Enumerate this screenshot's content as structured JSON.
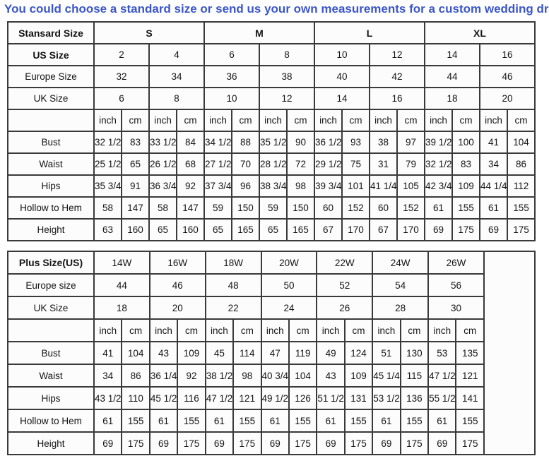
{
  "page": {
    "title": "You could choose a standard size or send us your own measurements for a custom wedding dress",
    "colors": {
      "title_blue": "#3b56c8",
      "table_border": "#3a3a3a",
      "cell_background": "#fcfcfc"
    }
  },
  "standard_table": {
    "corner_label": "Stansard Size",
    "size_groups": [
      {
        "label": "S",
        "span": 4
      },
      {
        "label": "M",
        "span": 4
      },
      {
        "label": "L",
        "span": 4
      },
      {
        "label": "XL",
        "span": 4
      }
    ],
    "size_rows": [
      {
        "label": "US Size",
        "bold": true,
        "values": [
          "2",
          "4",
          "6",
          "8",
          "10",
          "12",
          "14",
          "16"
        ]
      },
      {
        "label": "Europe Size",
        "bold": false,
        "values": [
          "32",
          "34",
          "36",
          "38",
          "40",
          "42",
          "44",
          "46"
        ]
      },
      {
        "label": "UK Size",
        "bold": false,
        "values": [
          "6",
          "8",
          "10",
          "12",
          "14",
          "16",
          "18",
          "20"
        ]
      }
    ],
    "unit_row": [
      "inch",
      "cm",
      "inch",
      "cm",
      "inch",
      "cm",
      "inch",
      "cm",
      "inch",
      "cm",
      "inch",
      "cm",
      "inch",
      "cm",
      "inch",
      "cm"
    ],
    "measure_rows": [
      {
        "label": "Bust",
        "values": [
          "32 1/2",
          "83",
          "33 1/2",
          "84",
          "34 1/2",
          "88",
          "35 1/2",
          "90",
          "36 1/2",
          "93",
          "38",
          "97",
          "39 1/2",
          "100",
          "41",
          "104"
        ]
      },
      {
        "label": "Waist",
        "values": [
          "25 1/2",
          "65",
          "26 1/2",
          "68",
          "27 1/2",
          "70",
          "28 1/2",
          "72",
          "29 1/2",
          "75",
          "31",
          "79",
          "32 1/2",
          "83",
          "34",
          "86"
        ]
      },
      {
        "label": "Hips",
        "values": [
          "35 3/4",
          "91",
          "36 3/4",
          "92",
          "37 3/4",
          "96",
          "38 3/4",
          "98",
          "39 3/4",
          "101",
          "41 1/4",
          "105",
          "42 3/4",
          "109",
          "44 1/4",
          "112"
        ]
      },
      {
        "label": "Hollow to Hem",
        "values": [
          "58",
          "147",
          "58",
          "147",
          "59",
          "150",
          "59",
          "150",
          "60",
          "152",
          "60",
          "152",
          "61",
          "155",
          "61",
          "155"
        ]
      },
      {
        "label": "Height",
        "values": [
          "63",
          "160",
          "65",
          "160",
          "65",
          "165",
          "65",
          "165",
          "67",
          "170",
          "67",
          "170",
          "69",
          "175",
          "69",
          "175"
        ]
      }
    ]
  },
  "plus_table": {
    "corner_label": "Plus Size(US)",
    "sizes": [
      "14W",
      "16W",
      "18W",
      "20W",
      "22W",
      "24W",
      "26W"
    ],
    "size_rows": [
      {
        "label": "Europe size",
        "bold": false,
        "values": [
          "44",
          "46",
          "48",
          "50",
          "52",
          "54",
          "56"
        ]
      },
      {
        "label": "UK Size",
        "bold": false,
        "values": [
          "18",
          "20",
          "22",
          "24",
          "26",
          "28",
          "30"
        ]
      }
    ],
    "unit_row": [
      "inch",
      "cm",
      "inch",
      "cm",
      "inch",
      "cm",
      "inch",
      "cm",
      "inch",
      "cm",
      "inch",
      "cm",
      "inch",
      "cm"
    ],
    "measure_rows": [
      {
        "label": "Bust",
        "values": [
          "41",
          "104",
          "43",
          "109",
          "45",
          "114",
          "47",
          "119",
          "49",
          "124",
          "51",
          "130",
          "53",
          "135"
        ]
      },
      {
        "label": "Waist",
        "values": [
          "34",
          "86",
          "36 1/4",
          "92",
          "38 1/2",
          "98",
          "40 3/4",
          "104",
          "43",
          "109",
          "45 1/4",
          "115",
          "47 1/2",
          "121"
        ]
      },
      {
        "label": "Hips",
        "values": [
          "43 1/2",
          "110",
          "45 1/2",
          "116",
          "47 1/2",
          "121",
          "49 1/2",
          "126",
          "51 1/2",
          "131",
          "53 1/2",
          "136",
          "55 1/2",
          "141"
        ]
      },
      {
        "label": "Hollow to Hem",
        "values": [
          "61",
          "155",
          "61",
          "155",
          "61",
          "155",
          "61",
          "155",
          "61",
          "155",
          "61",
          "155",
          "61",
          "155"
        ]
      },
      {
        "label": "Height",
        "values": [
          "69",
          "175",
          "69",
          "175",
          "69",
          "175",
          "69",
          "175",
          "69",
          "175",
          "69",
          "175",
          "69",
          "175"
        ]
      }
    ],
    "trailing_empty_column": true
  }
}
